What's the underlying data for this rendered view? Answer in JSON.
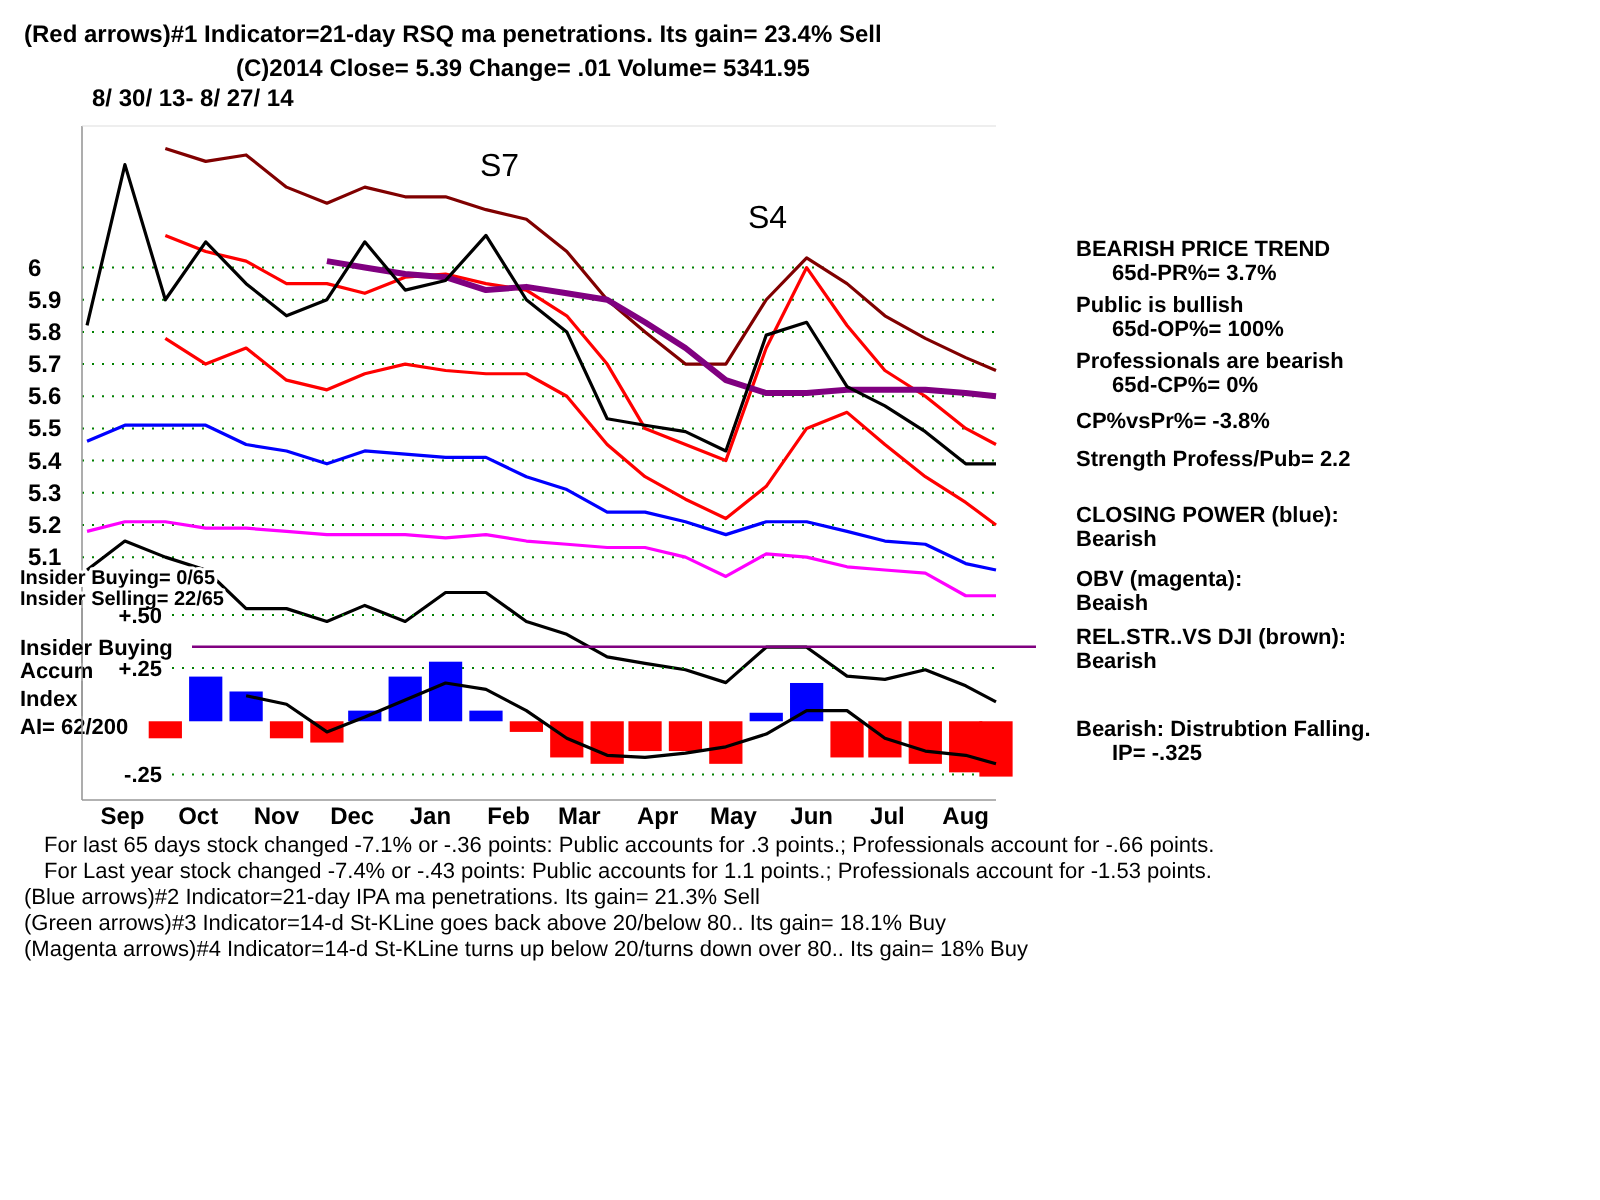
{
  "chart_data": [
    {
      "type": "line",
      "title": "(Red arrows)#1 Indicator=21-day RSQ ma penetrations. Its gain= 23.4% Sell",
      "subtitle": "8/ 30/ 13- 8/ 27/ 14",
      "x": [
        "2013-09-01",
        "2013-09-16",
        "2013-10-02",
        "2013-10-18",
        "2013-11-03",
        "2013-11-19",
        "2013-12-05",
        "2013-12-20",
        "2014-01-05",
        "2014-01-21",
        "2014-02-06",
        "2014-02-22",
        "2014-03-10",
        "2014-03-26",
        "2014-04-10",
        "2014-04-26",
        "2014-05-12",
        "2014-05-28",
        "2014-06-13",
        "2014-06-29",
        "2014-07-14",
        "2014-07-30",
        "2014-08-15",
        "2014-08-27"
      ],
      "xlim": [
        "2013-08-30",
        "2014-08-27"
      ],
      "ylim": [
        4.6,
        6.44
      ],
      "yticks": [
        5.1,
        5.2,
        5.3,
        5.4,
        5.5,
        5.6,
        5.7,
        5.8,
        5.9,
        6
      ],
      "tick_labels": "y",
      "grid": "y",
      "marker": "none",
      "line_style": "solid",
      "series": [
        {
          "color": "#800000",
          "values": [
            null,
            null,
            6.37,
            6.33,
            6.35,
            6.25,
            6.2,
            6.25,
            6.22,
            6.22,
            6.18,
            6.15,
            6.05,
            5.9,
            5.8,
            5.7,
            5.7,
            5.9,
            6.03,
            5.95,
            5.85,
            5.78,
            5.72,
            5.68
          ]
        },
        {
          "color": "#ff0000",
          "values": [
            null,
            null,
            6.1,
            6.05,
            6.02,
            5.95,
            5.95,
            5.92,
            5.97,
            5.98,
            5.95,
            5.93,
            5.85,
            5.7,
            5.5,
            5.45,
            5.4,
            5.75,
            6.0,
            5.82,
            5.68,
            5.6,
            5.5,
            5.45
          ]
        },
        {
          "color": "#ff0000",
          "values": [
            null,
            null,
            5.78,
            5.7,
            5.75,
            5.65,
            5.62,
            5.67,
            5.7,
            5.68,
            5.67,
            5.67,
            5.6,
            5.45,
            5.35,
            5.28,
            5.22,
            5.32,
            5.5,
            5.55,
            5.45,
            5.35,
            5.27,
            5.2
          ]
        },
        {
          "color": "#800080",
          "values": [
            null,
            null,
            null,
            null,
            null,
            null,
            6.02,
            6.0,
            5.98,
            5.97,
            5.93,
            5.94,
            5.92,
            5.9,
            5.83,
            5.75,
            5.65,
            5.61,
            5.61,
            5.62,
            5.62,
            5.62,
            5.61,
            5.6
          ]
        },
        {
          "color": "#000000",
          "values": [
            5.82,
            6.32,
            5.9,
            6.08,
            5.95,
            5.85,
            5.9,
            6.08,
            5.93,
            5.96,
            6.1,
            5.9,
            5.8,
            5.53,
            5.51,
            5.49,
            5.43,
            5.79,
            5.83,
            5.63,
            5.57,
            5.49,
            5.39,
            5.39
          ]
        },
        {
          "color": "#0000ff",
          "values": [
            5.46,
            5.51,
            5.51,
            5.51,
            5.45,
            5.43,
            5.39,
            5.43,
            5.42,
            5.41,
            5.41,
            5.35,
            5.31,
            5.24,
            5.24,
            5.21,
            5.17,
            5.21,
            5.21,
            5.18,
            5.15,
            5.14,
            5.08,
            5.06
          ]
        },
        {
          "color": "#ff00ff",
          "values": [
            5.18,
            5.21,
            5.21,
            5.19,
            5.19,
            5.18,
            5.17,
            5.17,
            5.17,
            5.16,
            5.17,
            5.15,
            5.14,
            5.13,
            5.13,
            5.1,
            5.04,
            5.11,
            5.1,
            5.07,
            5.06,
            5.05,
            4.98,
            4.98
          ]
        },
        {
          "color": "#000000",
          "values": [
            5.06,
            5.15,
            5.1,
            5.06,
            4.94,
            4.94,
            4.9,
            4.95,
            4.9,
            4.99,
            4.99,
            4.9,
            4.86,
            4.79,
            4.77,
            4.75,
            4.71,
            4.82,
            4.82,
            4.73,
            4.72,
            4.75,
            4.7,
            4.65
          ]
        }
      ],
      "annotations": [
        "(C)2014      Close=  5.39   Change= .01   Volume= 5341.95",
        "S7",
        "S4",
        "BEARISH PRICE TREND",
        "65d-PR%= 3.7%",
        "Public is bullish",
        "65d-OP%= 100%",
        "Professionals are bearish",
        "65d-CP%= 0%",
        "CP%vsPr%= -3.8%",
        "Strength Profess/Pub= 2.2",
        "CLOSING POWER (blue):",
        "Bearish",
        "OBV (magenta):",
        "Beaish",
        "REL.STR..VS DJI (brown):",
        "Bearish",
        "Bearish: Distrubtion Falling.",
        "IP= -.325",
        "Insider Buying= 0/65",
        "Insider Selling= 22/65",
        "Accum",
        "Index",
        "AI= 62/200",
        "For last 65 days stock changed -7.1% or -.36 points:  Public accounts for  .3 points.;  Professionals account for -.66 points.",
        "For Last year stock changed -7.4% or -.43 points:  Public accounts for  1.1 points.;  Professionals account for -1.53 points.",
        "(Blue arrows)#2 Indicator=21-day IPA ma penetrations. Its gain= 21.3% Sell",
        "(Green arrows)#3 Indicator=14-d St-KLine goes back above 20/below 80.. Its gain= 18.1% Buy",
        "(Magenta arrows)#4 Indicator=14-d St-KLine turns up below 20/turns down over 80.. Its gain= 18% Buy"
      ]
    },
    {
      "type": "bar",
      "x": [
        "2013-10-02",
        "2013-10-18",
        "2013-11-03",
        "2013-11-19",
        "2013-12-05",
        "2013-12-20",
        "2014-01-05",
        "2014-01-21",
        "2014-02-06",
        "2014-02-22",
        "2014-03-10",
        "2014-03-26",
        "2014-04-10",
        "2014-04-26",
        "2014-05-12",
        "2014-05-28",
        "2014-06-13",
        "2014-06-29",
        "2014-07-14",
        "2014-07-30",
        "2014-08-15",
        "2014-08-27"
      ],
      "xlim": [
        "2013-08-30",
        "2014-08-27"
      ],
      "ylim": [
        -0.37,
        0.57
      ],
      "yticks": [
        {
          "value": 0.5,
          "label": "+.50"
        },
        {
          "value": 0.25,
          "label": "+.25"
        },
        {
          "value": -0.25,
          "label": "-.25"
        }
      ],
      "xticks": [
        {
          "value": "2013-09-15",
          "label": "Sep"
        },
        {
          "value": "2013-10-15",
          "label": "Oct"
        },
        {
          "value": "2013-11-15",
          "label": "Nov"
        },
        {
          "value": "2013-12-15",
          "label": "Dec"
        },
        {
          "value": "2014-01-15",
          "label": "Jan"
        },
        {
          "value": "2014-02-15",
          "label": "Feb"
        },
        {
          "value": "2014-03-15",
          "label": "Mar"
        },
        {
          "value": "2014-04-15",
          "label": "Apr"
        },
        {
          "value": "2014-05-15",
          "label": "May"
        },
        {
          "value": "2014-06-15",
          "label": "Jun"
        },
        {
          "value": "2014-07-15",
          "label": "Jul"
        },
        {
          "value": "2014-08-15",
          "label": "Aug"
        }
      ],
      "grid": "y",
      "ref_lines": [
        {
          "axis": "y",
          "value": 0.35,
          "label": "Insider Buying",
          "color": "#800080"
        }
      ],
      "series": [
        {
          "type": "bar",
          "colors": [
            "#ff0000",
            "#0000ff",
            "#0000ff",
            "#ff0000",
            "#ff0000",
            "#0000ff",
            "#0000ff",
            "#0000ff",
            "#0000ff",
            "#ff0000",
            "#ff0000",
            "#ff0000",
            "#ff0000",
            "#ff0000",
            "#ff0000",
            "#0000ff",
            "#0000ff",
            "#ff0000",
            "#ff0000",
            "#ff0000",
            "#ff0000",
            "#ff0000"
          ],
          "values": [
            -0.08,
            0.21,
            0.14,
            -0.08,
            -0.1,
            0.05,
            0.21,
            0.28,
            0.05,
            -0.05,
            -0.17,
            -0.2,
            -0.14,
            -0.14,
            -0.2,
            0.04,
            0.18,
            -0.17,
            -0.17,
            -0.2,
            -0.24,
            -0.26
          ]
        },
        {
          "type": "line",
          "color": "#000000",
          "values": [
            null,
            null,
            0.12,
            0.08,
            -0.05,
            0.02,
            0.1,
            0.18,
            0.15,
            0.05,
            -0.08,
            -0.16,
            -0.17,
            -0.15,
            -0.12,
            -0.06,
            0.05,
            0.05,
            -0.08,
            -0.14,
            -0.16,
            -0.2
          ]
        }
      ]
    }
  ]
}
